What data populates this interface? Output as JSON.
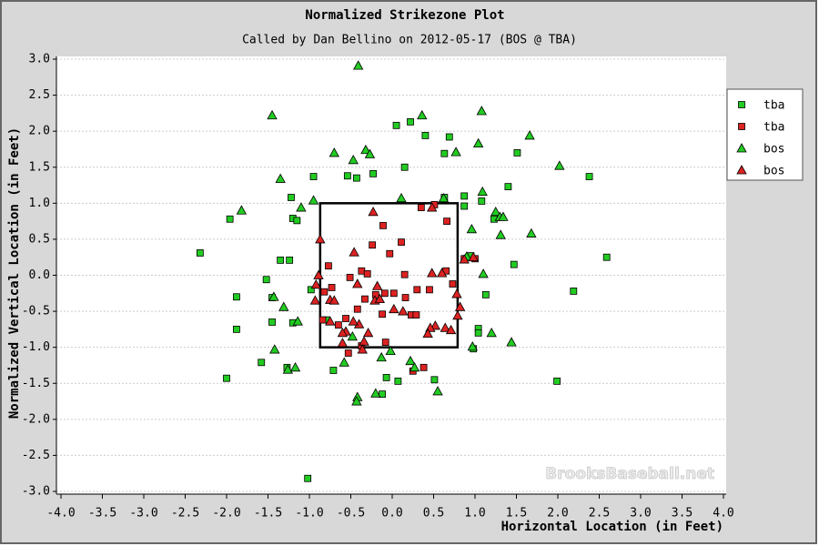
{
  "chart_data": {
    "type": "scatter",
    "title": "Normalized Strikezone Plot",
    "subtitle": "Called by Dan Bellino on 2012-05-17 (BOS @ TBA)",
    "x_label": "Horizontal Location (in Feet)",
    "y_label": "Normalized Vertical Location (in Feet)",
    "watermark": "BrooksBaseball.net",
    "xlim": [
      -4,
      4
    ],
    "ylim": [
      -3,
      3
    ],
    "xticks": [
      {
        "value": -4,
        "label": "-4.0"
      },
      -3.5,
      {
        "value": -3,
        "label": "-3.0"
      },
      -2.5,
      {
        "value": -2,
        "label": "-2.0"
      },
      -1.5,
      {
        "value": -1,
        "label": "-1.0"
      },
      -0.5,
      {
        "value": 0,
        "label": "0.0"
      },
      0.5,
      {
        "value": 1,
        "label": "1.0"
      },
      1.5,
      {
        "value": 2,
        "label": "2.0"
      },
      2.5,
      {
        "value": 3,
        "label": "3.0"
      },
      3.5,
      {
        "value": 4,
        "label": "4.0"
      }
    ],
    "yticks": [
      {
        "value": -3,
        "label": "-3.0"
      },
      -2.5,
      {
        "value": -2,
        "label": "-2.0"
      },
      -1.5,
      {
        "value": -1,
        "label": "-1.0"
      },
      -0.5,
      {
        "value": 0,
        "label": "0.0"
      },
      0.5,
      {
        "value": 1,
        "label": "1.0"
      },
      1.5,
      {
        "value": 2,
        "label": "2.0"
      },
      2.5,
      {
        "value": 3,
        "label": "3.0"
      }
    ],
    "grid": "y",
    "legend": "upper right",
    "zone": {
      "x": [
        -0.87,
        0.79
      ],
      "y": [
        -1.0,
        1.0
      ]
    },
    "series": [
      {
        "name": "tba",
        "color": "#22cc22",
        "marker": "square",
        "x": [
          -2.32,
          -1.96,
          -2.0,
          -1.88,
          -1.88,
          -1.58,
          -1.52,
          -1.45,
          -1.45,
          -1.35,
          -1.24,
          -1.22,
          -1.2,
          -1.15,
          -1.2,
          -1.27,
          -0.95,
          -1.02,
          -0.98,
          -0.79,
          -0.71,
          -0.54,
          -0.43,
          -0.23,
          -0.12,
          -0.07,
          0.05,
          0.07,
          0.15,
          0.22,
          0.4,
          0.51,
          0.63,
          0.63,
          0.69,
          0.87,
          0.87,
          0.95,
          0.98,
          1.04,
          1.04,
          1.08,
          1.13,
          1.23,
          1.4,
          1.47,
          1.51,
          1.99,
          2.19,
          2.38,
          2.59
        ],
        "values": [
          0.31,
          0.78,
          -1.43,
          -0.75,
          -0.3,
          -1.21,
          -0.06,
          -0.65,
          -0.31,
          0.21,
          0.21,
          1.08,
          0.79,
          0.76,
          -0.66,
          -1.28,
          1.37,
          -2.82,
          -0.2,
          -0.62,
          -1.32,
          1.38,
          1.35,
          1.41,
          -1.65,
          -1.42,
          2.08,
          -1.47,
          1.5,
          2.13,
          1.94,
          -1.45,
          1.69,
          1.08,
          1.92,
          1.1,
          0.96,
          0.27,
          -1.02,
          -0.74,
          -0.8,
          1.03,
          -0.27,
          0.78,
          1.23,
          0.15,
          1.7,
          -1.47,
          -0.22,
          1.37,
          0.25
        ]
      },
      {
        "name": "tba",
        "color": "#dd2222",
        "marker": "square",
        "x": [
          -0.77,
          -0.82,
          -0.84,
          -0.73,
          -0.65,
          -0.56,
          -0.51,
          -0.42,
          -0.37,
          -0.33,
          -0.3,
          -0.24,
          -0.2,
          -0.12,
          -0.11,
          -0.08,
          -0.03,
          -0.09,
          0.02,
          0.11,
          0.15,
          0.16,
          0.23,
          0.29,
          0.3,
          0.35,
          0.38,
          0.45,
          0.66,
          0.65,
          0.73,
          0.87,
          1.0,
          -0.53,
          -0.37,
          0.25,
          0.51
        ],
        "values": [
          0.13,
          -0.23,
          -0.62,
          -0.17,
          -0.69,
          -0.6,
          -0.03,
          -0.47,
          0.06,
          -0.33,
          0.02,
          0.42,
          -0.27,
          -0.54,
          0.69,
          -0.93,
          0.3,
          -0.25,
          -0.25,
          0.46,
          0.01,
          -0.31,
          -0.55,
          -0.55,
          -0.2,
          0.94,
          -1.28,
          -0.2,
          0.75,
          0.06,
          -0.12,
          0.23,
          0.23,
          -1.08,
          -0.98,
          -1.33,
          0.98
        ]
      },
      {
        "name": "bos",
        "color": "#22cc22",
        "marker": "triangle",
        "x": [
          -0.41,
          -1.45,
          -1.82,
          -1.35,
          -1.1,
          -0.95,
          -0.7,
          -0.47,
          -0.32,
          -0.27,
          0.36,
          0.11,
          0.62,
          1.08,
          1.04,
          0.77,
          1.09,
          1.25,
          1.3,
          1.34,
          1.31,
          1.66,
          1.68,
          2.02,
          0.96,
          0.9,
          1.1,
          -1.43,
          -1.31,
          -1.14,
          -1.42,
          -1.26,
          -1.17,
          -0.58,
          -0.48,
          -0.42,
          -0.43,
          -0.2,
          -0.13,
          -0.02,
          0.22,
          0.27,
          0.55,
          0.97,
          1.2,
          1.44
        ],
        "values": [
          2.91,
          2.22,
          0.9,
          1.34,
          0.94,
          1.04,
          1.7,
          1.6,
          1.74,
          1.68,
          2.22,
          1.07,
          1.07,
          2.28,
          1.83,
          1.71,
          1.16,
          0.88,
          0.81,
          0.81,
          0.56,
          1.94,
          0.58,
          1.52,
          0.64,
          0.26,
          0.02,
          -0.3,
          -0.44,
          -0.64,
          -1.03,
          -1.31,
          -1.28,
          -1.21,
          -0.85,
          -1.69,
          -1.75,
          -1.64,
          -1.14,
          -1.05,
          -1.19,
          -1.28,
          -1.61,
          -0.99,
          -0.8,
          -0.93
        ]
      },
      {
        "name": "bos",
        "color": "#dd2222",
        "marker": "triangle",
        "x": [
          -0.87,
          -0.89,
          -0.92,
          -0.93,
          -0.75,
          -0.7,
          -0.46,
          -0.42,
          -0.4,
          -0.47,
          -0.56,
          -0.6,
          -0.34,
          -0.36,
          -0.29,
          -0.23,
          -0.18,
          -0.21,
          -0.15,
          0.02,
          0.13,
          0.48,
          0.6,
          0.52,
          0.46,
          0.43,
          0.64,
          0.71,
          0.78,
          0.82,
          0.79,
          0.87,
          0.98,
          -0.75,
          0.48,
          -0.6
        ],
        "values": [
          0.5,
          0.0,
          -0.13,
          -0.35,
          -0.34,
          -0.35,
          0.32,
          -0.12,
          -0.68,
          -0.64,
          -0.78,
          -0.94,
          -0.92,
          -1.03,
          -0.8,
          0.88,
          -0.15,
          -0.35,
          -0.33,
          -0.47,
          -0.5,
          0.03,
          0.03,
          -0.7,
          -0.73,
          -0.81,
          -0.73,
          -0.76,
          -0.26,
          -0.44,
          -0.56,
          0.22,
          0.25,
          -0.64,
          0.94,
          -0.8
        ]
      }
    ]
  }
}
